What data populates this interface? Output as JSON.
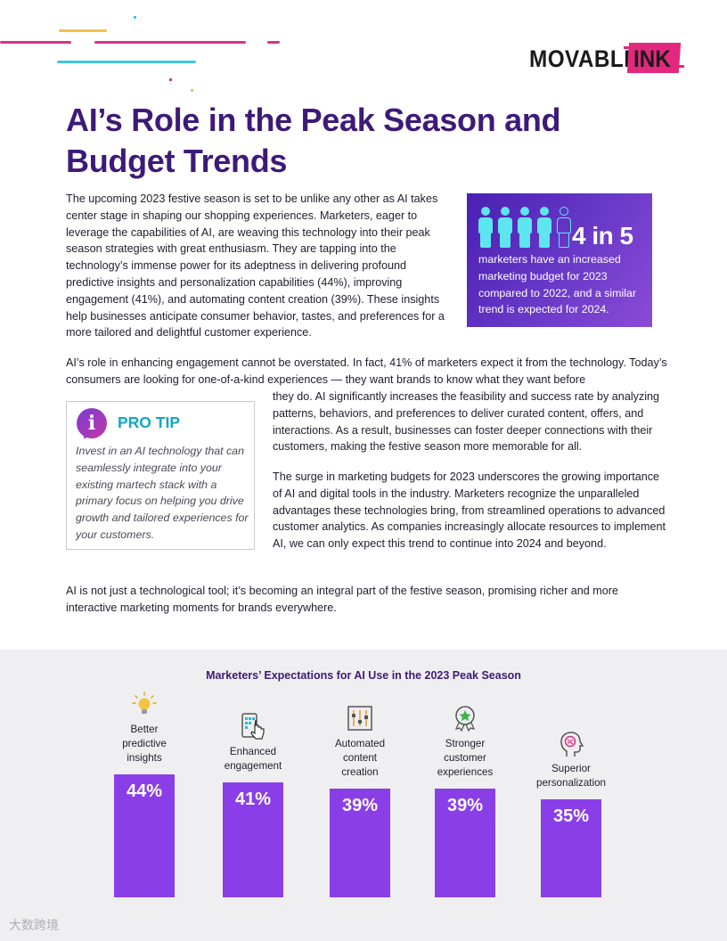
{
  "logo": {
    "part1": "MOVABLE",
    "part2": "INK"
  },
  "title": "AI’s Role in the Peak Season and Budget Trends",
  "intro_paragraph": "The upcoming 2023 festive season is set to be unlike any other as AI takes center stage in shaping our shopping experiences. Marketers, eager to leverage the capabilities of AI, are weaving this technology into their peak season strategies with great enthusiasm. They are tapping into the technology’s immense power for its adeptness in delivering profound predictive insights and personalization capabilities (44%), improving engagement (41%), and automating content creation (39%). These insights help businesses anticipate consumer behavior, tastes, and preferences for a more tailored and delightful customer experience.",
  "stat_box": {
    "big_stat": "4 in 5",
    "description": "marketers have an increased marketing budget for 2023 compared to 2022, and a similar trend is expected for 2024.",
    "people_filled": 4,
    "people_total": 5
  },
  "engagement_paragraph_top": "AI’s role in enhancing engagement cannot be overstated. In fact, 41% of marketers expect it from the technology. Today’s consumers are looking for one-of-a-kind experiences — they want brands to know what they want before",
  "engagement_paragraph_rest": "they do. AI significantly increases the feasibility and success rate by analyzing patterns, behaviors, and preferences to deliver curated content, offers, and interactions. As a result, businesses can foster deeper connections with their customers, making the festive season more memorable for all.",
  "pro_tip": {
    "heading": "PRO TIP",
    "text": "Invest in an AI technology that can seamlessly integrate into your existing martech stack with a primary focus on helping you drive growth and tailored experiences for your customers."
  },
  "budget_paragraph": "The surge in marketing budgets for 2023 underscores the growing importance of AI and digital tools in the industry. Marketers recognize the unparalleled advantages these technologies bring, from streamlined operations to advanced customer analytics. As companies increasingly allocate resources to implement AI, we can only expect this trend to continue into 2024 and beyond.",
  "closing_paragraph": "AI is not just a technological tool; it’s becoming an integral part of the festive season, promising richer and more interactive marketing moments for brands everywhere.",
  "chart_data": {
    "type": "bar",
    "title": "Marketers’ Expectations for AI Use in the 2023 Peak Season",
    "categories": [
      "Better predictive insights",
      "Enhanced engagement",
      "Automated content creation",
      "Stronger customer experiences",
      "Superior personalization"
    ],
    "values": [
      44,
      41,
      39,
      39,
      35
    ],
    "value_labels": [
      "44%",
      "41%",
      "39%",
      "39%",
      "35%"
    ],
    "category_lines": [
      [
        "Better",
        "predictive",
        "insights"
      ],
      [
        "Enhanced",
        "engagement"
      ],
      [
        "Automated",
        "content",
        "creation"
      ],
      [
        "Stronger",
        "customer",
        "experiences"
      ],
      [
        "Superior",
        "personalization"
      ]
    ],
    "icons": [
      "lightbulb-icon",
      "touch-screen-icon",
      "sliders-icon",
      "star-badge-icon",
      "brain-head-icon"
    ],
    "bar_color": "#8a3ee8",
    "grid": false
  },
  "watermark": "大数跨境",
  "colors": {
    "title": "#3d1a78",
    "accent_pink": "#e2297e",
    "accent_cyan": "#14a6c4",
    "bar": "#8a3ee8"
  }
}
